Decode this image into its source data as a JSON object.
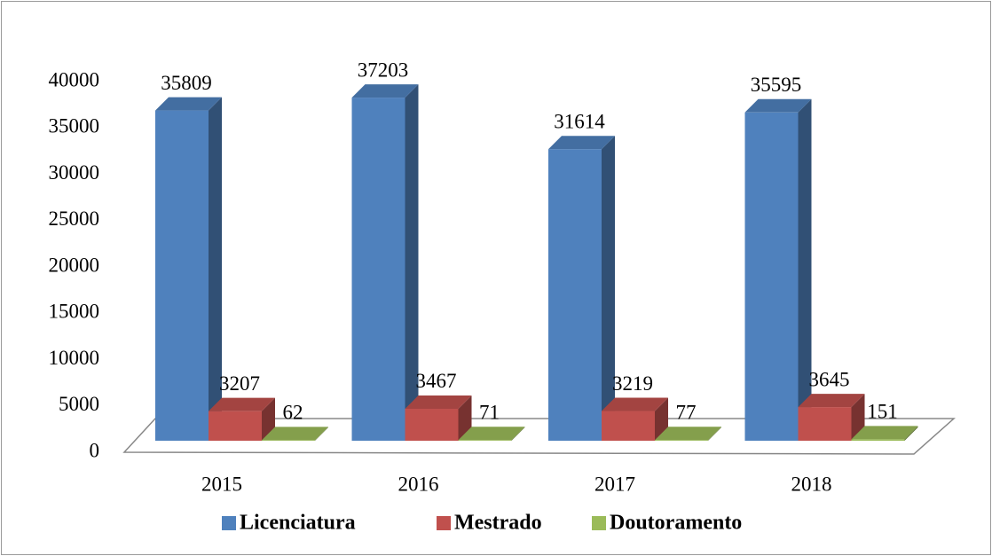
{
  "chart_data": {
    "type": "bar3d",
    "categories": [
      "2015",
      "2016",
      "2017",
      "2018"
    ],
    "series": [
      {
        "name": "Licenciatura",
        "color": "#4f81bd",
        "values": [
          35809,
          37203,
          31614,
          35595
        ]
      },
      {
        "name": "Mestrado",
        "color": "#c0504d",
        "values": [
          3207,
          3467,
          3219,
          3645
        ]
      },
      {
        "name": "Doutoramento",
        "color": "#9bbb59",
        "values": [
          62,
          71,
          77,
          151
        ]
      }
    ],
    "ylim": [
      0,
      40000
    ],
    "yticks": [
      0,
      5000,
      10000,
      15000,
      20000,
      25000,
      30000,
      35000,
      40000
    ],
    "grid": false,
    "legend": "bottom"
  }
}
